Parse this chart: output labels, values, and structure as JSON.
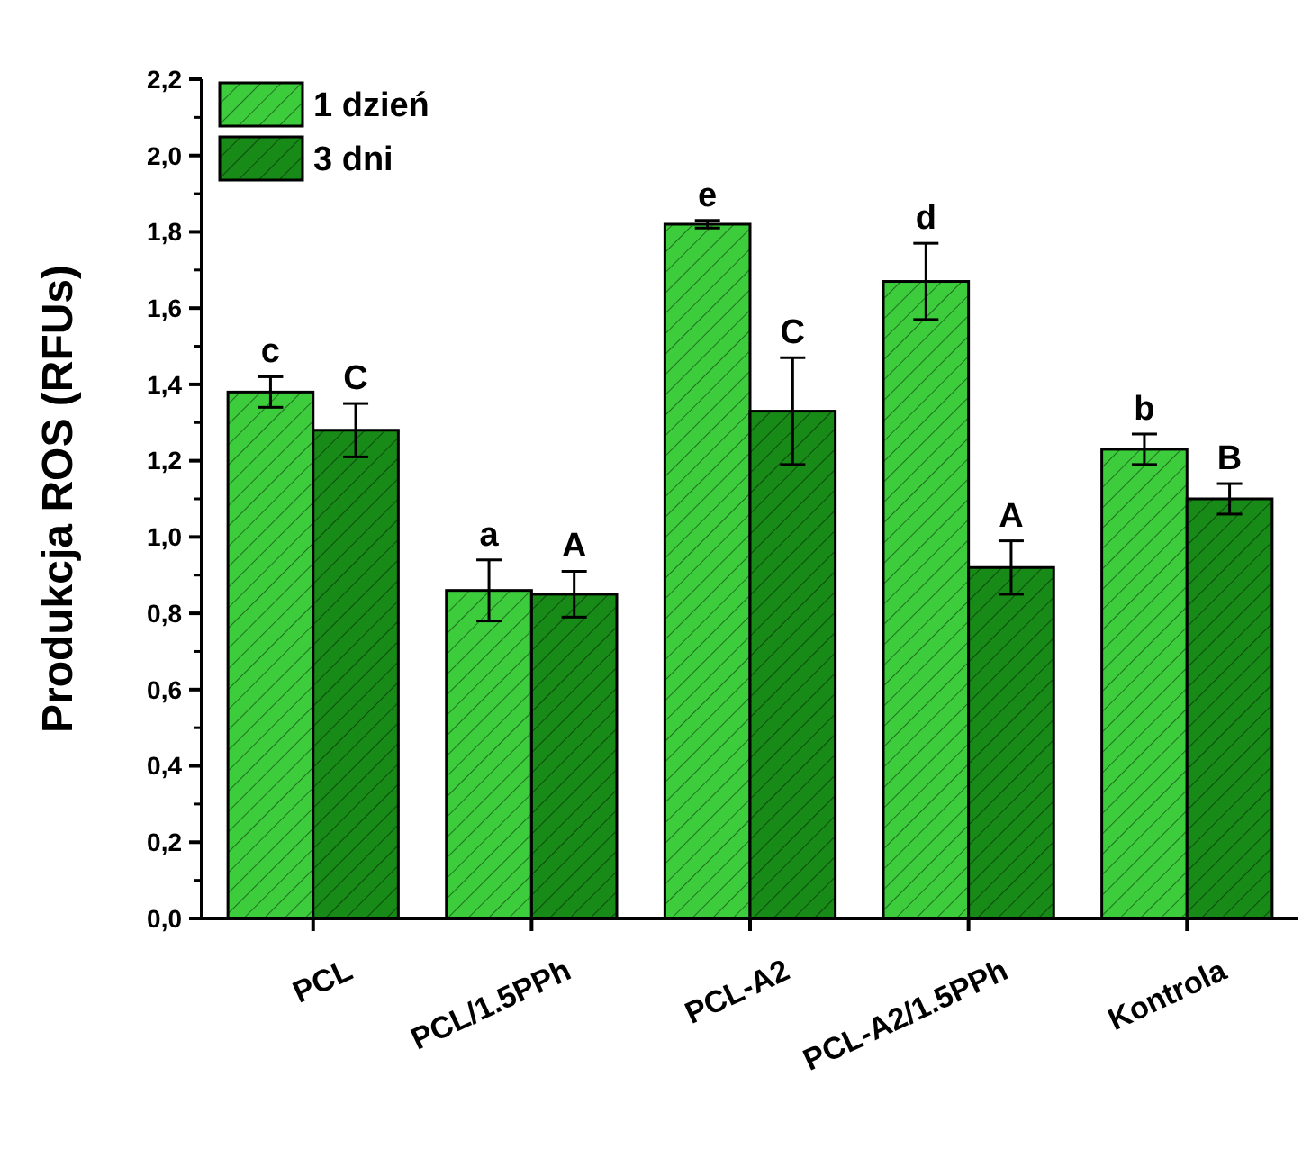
{
  "chart_data": {
    "type": "bar",
    "ylabel": "Produkcja ROS (RFUs)",
    "categories": [
      "PCL",
      "PCL/1.5PPh",
      "PCL-A2",
      "PCL-A2/1.5PPh",
      "Kontrola"
    ],
    "series": [
      {
        "name": "1 dzień",
        "color": "#3ccc3c",
        "values": [
          1.38,
          0.86,
          1.82,
          1.67,
          1.23
        ],
        "errors": [
          0.04,
          0.08,
          0.01,
          0.1,
          0.04
        ]
      },
      {
        "name": "3 dni",
        "color": "#178a17",
        "values": [
          1.28,
          0.85,
          1.33,
          0.92,
          1.1
        ],
        "errors": [
          0.07,
          0.06,
          0.14,
          0.07,
          0.04
        ]
      }
    ],
    "ylim": [
      0,
      2.2
    ],
    "yticks": [
      {
        "value": 0,
        "label": "0,0"
      },
      {
        "value": 0.2,
        "label": "0,2"
      },
      {
        "value": 0.4,
        "label": "0,4"
      },
      {
        "value": 0.6,
        "label": "0,6"
      },
      {
        "value": 0.8,
        "label": "0,8"
      },
      {
        "value": 1.0,
        "label": "1,0"
      },
      {
        "value": 1.2,
        "label": "1,2"
      },
      {
        "value": 1.4,
        "label": "1,4"
      },
      {
        "value": 1.6,
        "label": "1,6"
      },
      {
        "value": 1.8,
        "label": "1,8"
      },
      {
        "value": 2.0,
        "label": "2,0"
      },
      {
        "value": 2.2,
        "label": "2,2"
      }
    ],
    "annotations": [
      "c",
      "C",
      "a",
      "A",
      "e",
      "C",
      "d",
      "A",
      "b",
      "B"
    ],
    "legend": "top left",
    "grid": false
  }
}
